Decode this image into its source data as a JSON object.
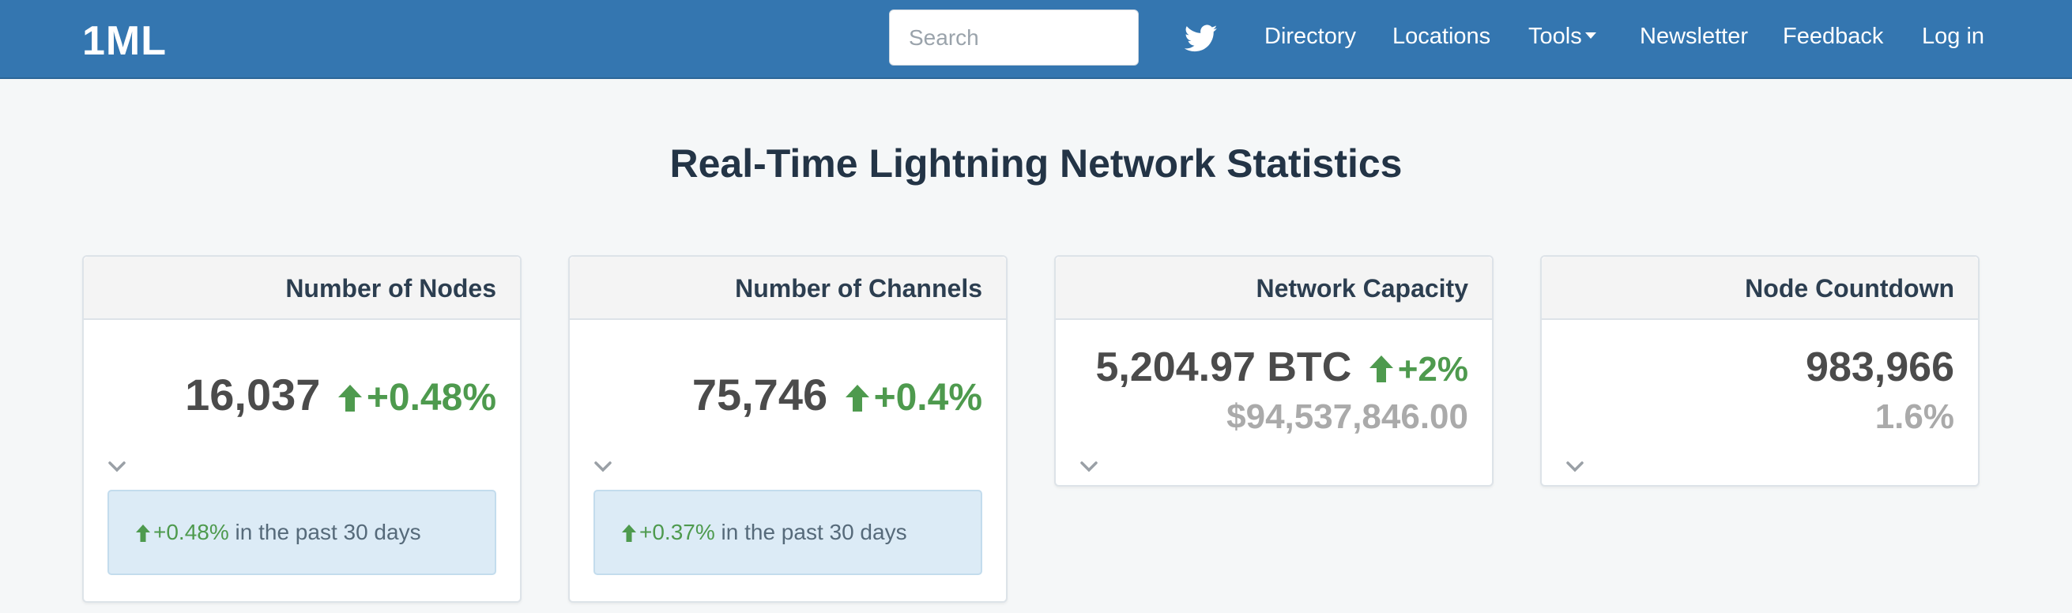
{
  "nav": {
    "brand": "1ML",
    "search_placeholder": "Search",
    "links": {
      "directory": "Directory",
      "locations": "Locations",
      "tools": "Tools",
      "newsletter": "Newsletter",
      "feedback": "Feedback",
      "login": "Log in"
    }
  },
  "page": {
    "title": "Real-Time Lightning Network Statistics"
  },
  "cards": {
    "nodes": {
      "title": "Number of Nodes",
      "value": "16,037",
      "change": "+0.48%",
      "info_change": "+0.48%",
      "info_text": " in the past 30 days"
    },
    "channels": {
      "title": "Number of Channels",
      "value": "75,746",
      "change": "+0.4%",
      "info_change": "+0.37%",
      "info_text": " in the past 30 days"
    },
    "capacity": {
      "title": "Network Capacity",
      "value": "5,204.97 BTC",
      "change": "+2%",
      "sub_value": "$94,537,846.00"
    },
    "countdown": {
      "title": "Node Countdown",
      "value": "983,966",
      "sub_value": "1.6%"
    }
  },
  "colors": {
    "navbar": "#3476b0",
    "positive": "#4e9a4e",
    "info_box": "#dcebf6",
    "muted": "#aaaaaa"
  }
}
